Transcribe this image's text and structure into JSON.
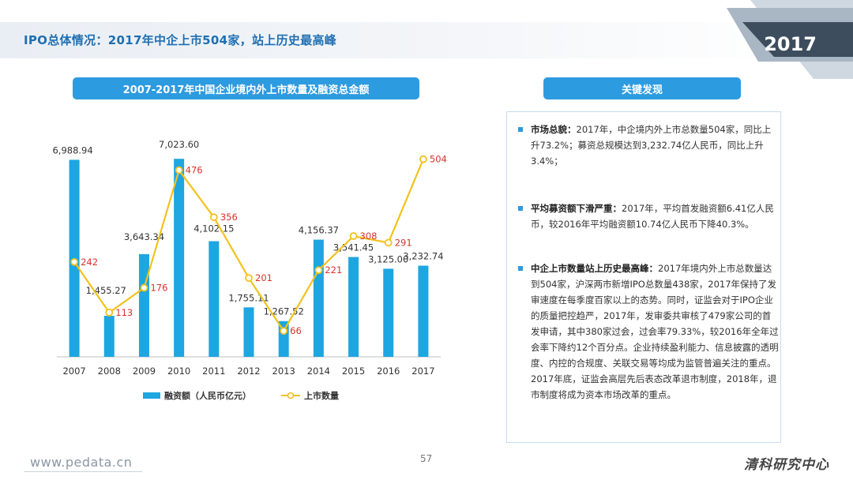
{
  "header": {
    "title": "IPO总体情况：2017年中企上市504家，站上历史最高峰",
    "year_badge": "2017"
  },
  "chart_title": "2007-2017年中国企业境内外上市数量及融资总金额",
  "findings_title": "关键发现",
  "findings": [
    {
      "label": "市场总貌：",
      "text": "2017年，中企境内外上市总数量504家，同比上升73.2%；募资总规模达到3,232.74亿人民币，同比上升3.4%；"
    },
    {
      "label": "平均募资额下滑严重：",
      "text": "2017年，平均首发融资额6.41亿人民币，较2016年平均融资额10.74亿人民币下降40.3%。"
    },
    {
      "label": "中企上市数量站上历史最高峰：",
      "text": "2017年境内外上市总数量达到504家，沪深两市新增IPO总数量438家，2017年保持了发审速度在每季度百家以上的态势。同时，证监会对于IPO企业的质量把控趋严，2017年，发审委共审核了479家公司的首发申请，其中380家过会，过会率79.33%，较2016年全年过会率下降约12个百分点。企业持续盈利能力、信息披露的透明度、内控的合规度、关联交易等均成为监管普遍关注的重点。2017年底，证监会高层先后表态改革退市制度，2018年，退市制度将成为资本市场改革的重点。"
    }
  ],
  "footer": {
    "url": "www.pedata.cn",
    "page": "57",
    "brand": "清科研究中心"
  },
  "colors": {
    "bar": "#1ea6e0",
    "line": "#f2c21c",
    "line_label": "#d9312b",
    "accent": "#2d9be0"
  },
  "chart_data": {
    "type": "bar",
    "categories": [
      "2007",
      "2008",
      "2009",
      "2010",
      "2011",
      "2012",
      "2013",
      "2014",
      "2015",
      "2016",
      "2017"
    ],
    "series": [
      {
        "name": "融资额（人民币亿元）",
        "type": "bar",
        "values": [
          6988.94,
          1455.27,
          3643.34,
          7023.6,
          4102.15,
          1755.11,
          1267.52,
          4156.37,
          3541.45,
          3125.0,
          3232.74
        ],
        "labels": [
          "6,988.94",
          "1,455.27",
          "3,643.34",
          "7,023.60",
          "4,102.15",
          "1,755.11",
          "1,267.52",
          "4,156.37",
          "3,541.45",
          "3,125.00",
          "3,232.74"
        ]
      },
      {
        "name": "上市数量",
        "type": "line",
        "values": [
          242,
          113,
          176,
          476,
          356,
          201,
          66,
          221,
          308,
          291,
          504
        ]
      }
    ],
    "bar_ylim": [
      0,
      7000
    ],
    "line_ylim": [
      0,
      600
    ],
    "legend": "bottom",
    "grid": false
  }
}
